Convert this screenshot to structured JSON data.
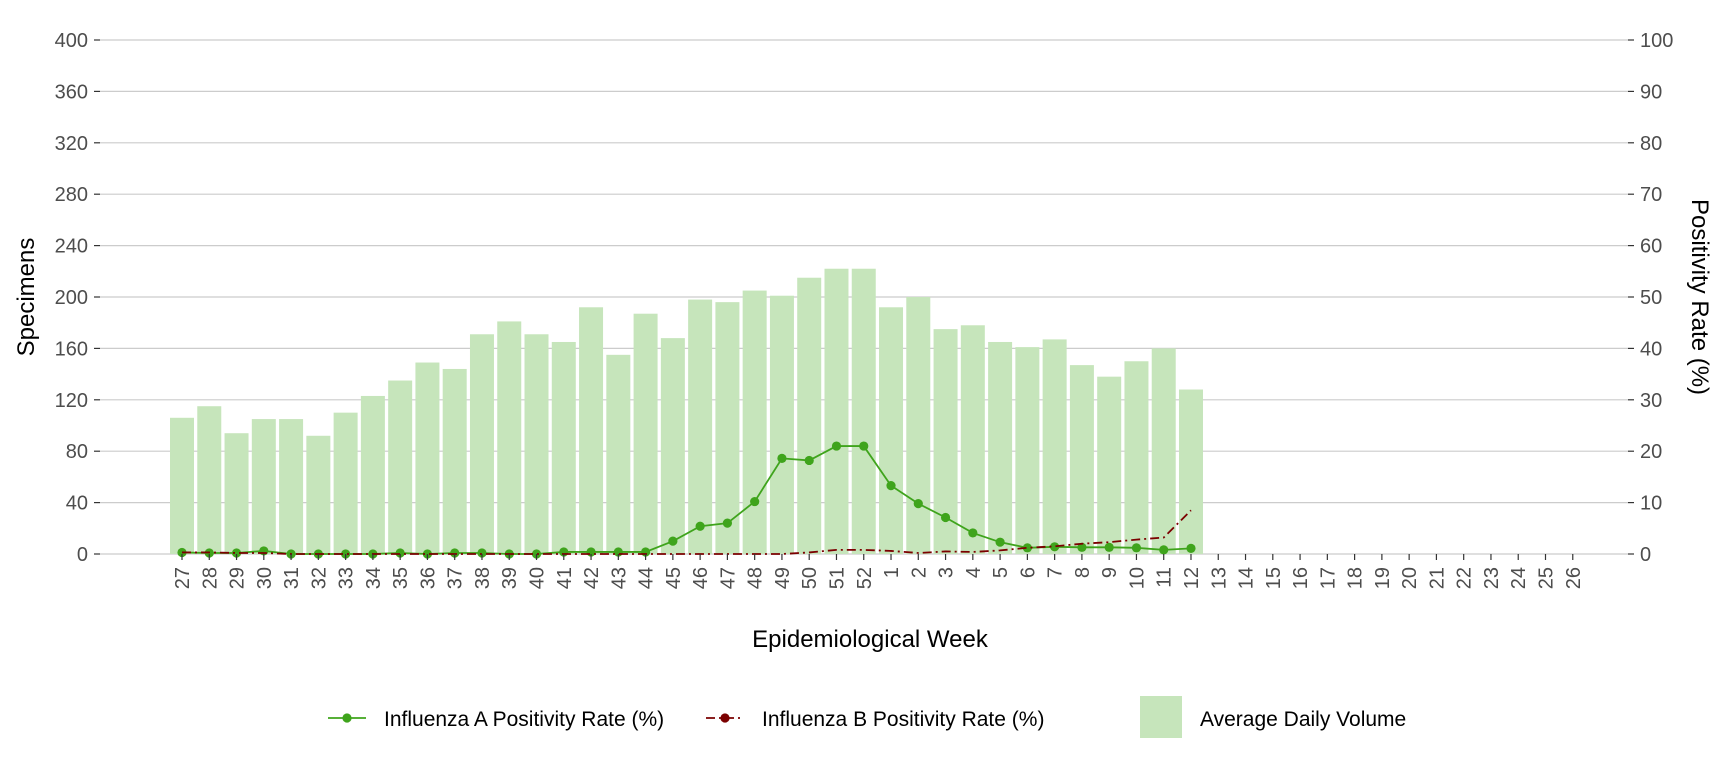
{
  "chart_data": {
    "type": "bar",
    "title": "",
    "xlabel": "Epidemiological Week",
    "ylabel": "Specimens",
    "y2label": "Positivity Rate (%)",
    "ylim": [
      0,
      400
    ],
    "y2lim": [
      0,
      100
    ],
    "yticks": [
      0,
      40,
      80,
      120,
      160,
      200,
      240,
      280,
      320,
      360,
      400
    ],
    "y2ticks": [
      0,
      10,
      20,
      30,
      40,
      50,
      60,
      70,
      80,
      90,
      100
    ],
    "grid": true,
    "legend_position": "bottom",
    "categories": [
      "27",
      "28",
      "29",
      "30",
      "31",
      "32",
      "33",
      "34",
      "35",
      "36",
      "37",
      "38",
      "39",
      "40",
      "41",
      "42",
      "43",
      "44",
      "45",
      "46",
      "47",
      "48",
      "49",
      "50",
      "51",
      "52",
      "1",
      "2",
      "3",
      "4",
      "5",
      "6",
      "7",
      "8",
      "9",
      "10",
      "11",
      "12",
      "13",
      "14",
      "15",
      "16",
      "17",
      "18",
      "19",
      "20",
      "21",
      "22",
      "23",
      "24",
      "25",
      "26"
    ],
    "series": [
      {
        "name": "Average Daily Volume",
        "kind": "bar",
        "axis": "left",
        "color": "#c6e5bb",
        "values": [
          106,
          115,
          94,
          105,
          105,
          92,
          110,
          123,
          135,
          149,
          144,
          171,
          181,
          171,
          165,
          192,
          155,
          187,
          168,
          198,
          196,
          205,
          201,
          215,
          222,
          222,
          192,
          200,
          175,
          178,
          165,
          161,
          167,
          147,
          138,
          150,
          160,
          128,
          null,
          null,
          null,
          null,
          null,
          null,
          null,
          null,
          null,
          null,
          null,
          null,
          null,
          null
        ]
      },
      {
        "name": "Influenza A Positivity Rate (%)",
        "kind": "line",
        "axis": "right",
        "color": "#3fa41c",
        "dash": "solid",
        "markers": true,
        "values": [
          0.3,
          0.2,
          0.2,
          0.6,
          0.0,
          0.0,
          0.0,
          0.0,
          0.2,
          0.0,
          0.2,
          0.2,
          0.0,
          0.0,
          0.4,
          0.4,
          0.4,
          0.4,
          2.5,
          5.4,
          6.0,
          10.2,
          18.6,
          18.2,
          21.0,
          21.0,
          13.3,
          9.8,
          7.1,
          4.1,
          2.3,
          1.2,
          1.4,
          1.3,
          1.3,
          1.2,
          0.8,
          1.1,
          null,
          null,
          null,
          null,
          null,
          null,
          null,
          null,
          null,
          null,
          null,
          null,
          null,
          null
        ]
      },
      {
        "name": "Influenza B Positivity Rate (%)",
        "kind": "line",
        "axis": "right",
        "color": "#7b0000",
        "dash": "dashdot",
        "markers": false,
        "values": [
          0.3,
          0.3,
          0.2,
          0.2,
          0.0,
          0.0,
          0.0,
          0.0,
          0.0,
          0.0,
          0.0,
          0.0,
          0.0,
          0.0,
          0.0,
          0.0,
          0.0,
          0.0,
          0.0,
          0.0,
          0.0,
          0.0,
          0.0,
          0.3,
          0.8,
          0.8,
          0.6,
          0.2,
          0.5,
          0.4,
          0.7,
          1.2,
          1.5,
          2.0,
          2.3,
          2.8,
          3.2,
          8.5,
          null,
          null,
          null,
          null,
          null,
          null,
          null,
          null,
          null,
          null,
          null,
          null,
          null,
          null
        ]
      }
    ],
    "legend": [
      {
        "label": "Influenza A Positivity Rate (%)",
        "symbol": "line-point",
        "color": "#3fa41c",
        "dash": "solid"
      },
      {
        "label": "Influenza B Positivity Rate (%)",
        "symbol": "line-point",
        "color": "#7b0000",
        "dash": "dashdot"
      },
      {
        "label": "Average Daily Volume",
        "symbol": "box",
        "color": "#c6e5bb"
      }
    ],
    "colors": {
      "grid": "#cccccc",
      "tick": "#333333",
      "tick_label": "#4d4d4d"
    }
  }
}
